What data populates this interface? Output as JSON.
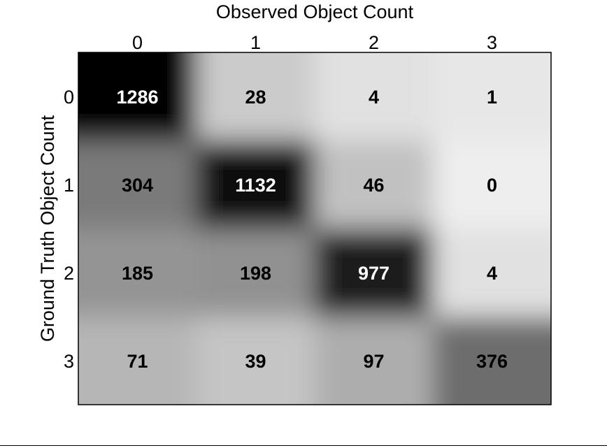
{
  "chart_data": {
    "type": "heatmap",
    "title": "Observed Object Count",
    "xlabel": "Observed Object Count",
    "ylabel": "Ground Truth Object Count",
    "x_categories": [
      "0",
      "1",
      "2",
      "3"
    ],
    "y_categories": [
      "0",
      "1",
      "2",
      "3"
    ],
    "values": [
      [
        1286,
        28,
        4,
        1
      ],
      [
        304,
        1132,
        46,
        0
      ],
      [
        185,
        198,
        977,
        4
      ],
      [
        71,
        39,
        97,
        376
      ]
    ],
    "colormap": "gray-reversed",
    "x_axis_position": "top",
    "grid": false
  }
}
